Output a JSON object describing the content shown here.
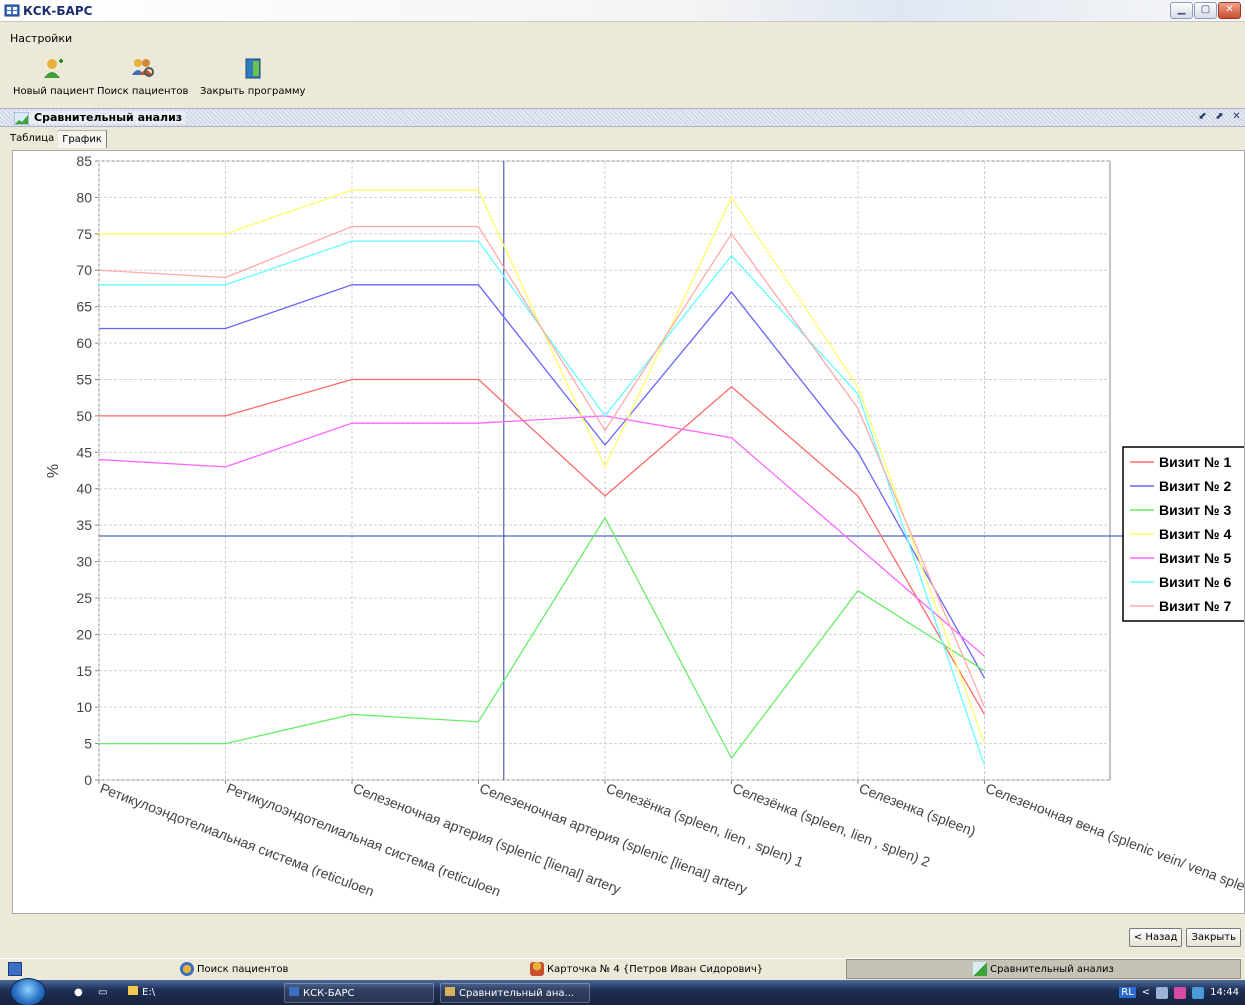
{
  "window": {
    "title": "КСК-БАРС"
  },
  "menu": [
    "Настройки"
  ],
  "toolbar": {
    "new_patient": "Новый пациент",
    "search_patients": "Поиск пациентов",
    "close_program": "Закрыть программу"
  },
  "frame": {
    "title": "Сравнительный анализ"
  },
  "tabs": [
    "Таблица",
    "График"
  ],
  "chart_data": {
    "type": "line",
    "ylabel": "%",
    "ylim": [
      0,
      85
    ],
    "yticks": [
      0,
      5,
      10,
      15,
      20,
      25,
      30,
      35,
      40,
      45,
      50,
      55,
      60,
      65,
      70,
      75,
      80,
      85
    ],
    "categories": [
      "Ретикулоэндотелиальная система (reticuloen",
      "Ретикулоэндотелиальная система (reticuloen",
      "Селезеночная артерия (splenic [lienal] artery",
      "Селезеночная артерия (splenic [lienal] artery",
      "Селезёнка (spleen, lien , splen) 1",
      "Селезёнка (spleen, lien , splen) 2",
      "Селезенка (spleen)",
      "Селезеночная вена (splenic vein/ vena splen"
    ],
    "crosshair": {
      "category_position": 3.2,
      "y": 33.5
    },
    "series": [
      {
        "name": "Визит № 1",
        "color": "#ff6b6b",
        "values": [
          50,
          50,
          55,
          55,
          39,
          54,
          39,
          9
        ]
      },
      {
        "name": "Визит № 2",
        "color": "#6666ff",
        "values": [
          62,
          62,
          68,
          68,
          46,
          67,
          45,
          14
        ]
      },
      {
        "name": "Визит № 3",
        "color": "#66ee66",
        "values": [
          5,
          5,
          9,
          8,
          36,
          3,
          26,
          15
        ]
      },
      {
        "name": "Визит № 4",
        "color": "#ffff66",
        "values": [
          75,
          75,
          81,
          81,
          43,
          80,
          54,
          5
        ]
      },
      {
        "name": "Визит № 5",
        "color": "#ff66ff",
        "values": [
          44,
          43,
          49,
          49,
          50,
          47,
          32,
          17
        ]
      },
      {
        "name": "Визит № 6",
        "color": "#66ffff",
        "values": [
          68,
          68,
          74,
          74,
          50,
          72,
          53,
          2
        ]
      },
      {
        "name": "Визит № 7",
        "color": "#ffaaaa",
        "values": [
          70,
          69,
          76,
          76,
          48,
          75,
          51,
          10
        ]
      }
    ]
  },
  "buttons": {
    "back": "< Назад",
    "close": "Закрыть"
  },
  "statusbar": {
    "search": "Поиск пациентов",
    "card": "Карточка № 4 {Петров Иван Сидорович}",
    "analysis": "Сравнительный анализ"
  },
  "taskbar": {
    "drive": "E:\\",
    "app": "КСК-БАРС",
    "window": "Сравнительный ана...",
    "lang": "RL",
    "time": "14:44"
  }
}
